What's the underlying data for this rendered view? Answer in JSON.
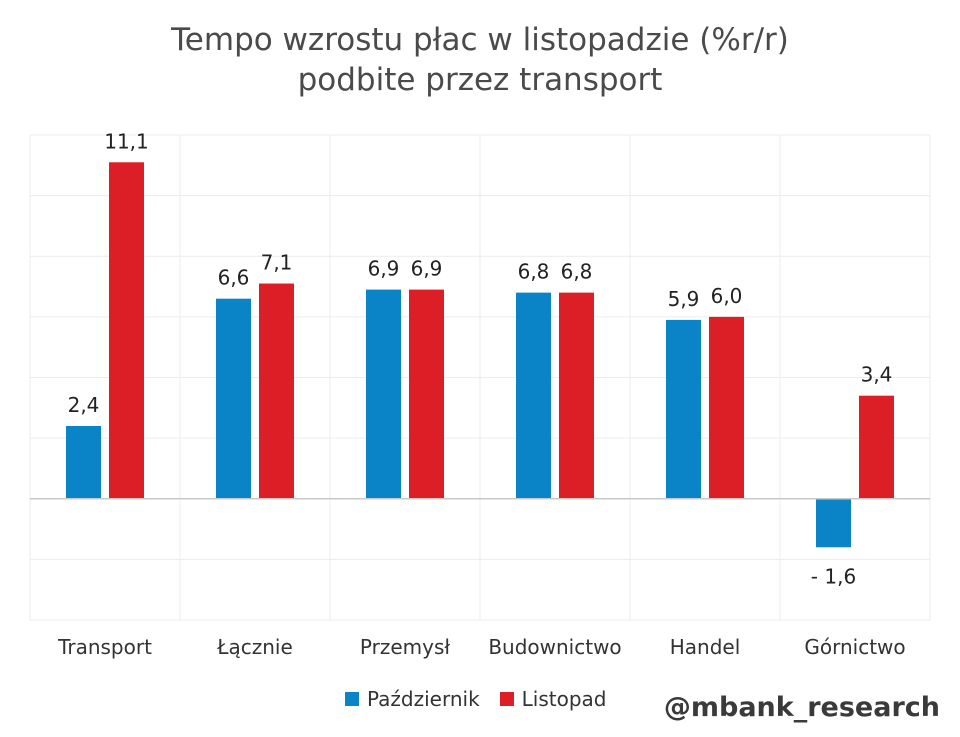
{
  "chart_data": {
    "type": "bar",
    "title_line1": "Tempo wzrostu płac w listopadzie (%r/r)",
    "title_line2": "podbite przez transport",
    "categories": [
      "Transport",
      "Łącznie",
      "Przemysł",
      "Budownictwo",
      "Handel",
      "Górnictwo"
    ],
    "series": [
      {
        "name": "Październik",
        "color": "#0a84c6",
        "values": [
          2.4,
          6.6,
          6.9,
          6.8,
          5.9,
          -1.6
        ],
        "labels": [
          "2,4",
          "6,6",
          "6,9",
          "6,8",
          "5,9",
          "- 1,6"
        ]
      },
      {
        "name": "Listopad",
        "color": "#dc1f26",
        "values": [
          11.1,
          7.1,
          6.9,
          6.8,
          6.0,
          3.4
        ],
        "labels": [
          "11,1",
          "7,1",
          "6,9",
          "6,8",
          "6,0",
          "3,4"
        ]
      }
    ],
    "ylim": [
      -4,
      12
    ],
    "grid": true,
    "legend_position": "bottom"
  },
  "credit": "@mbank_research"
}
